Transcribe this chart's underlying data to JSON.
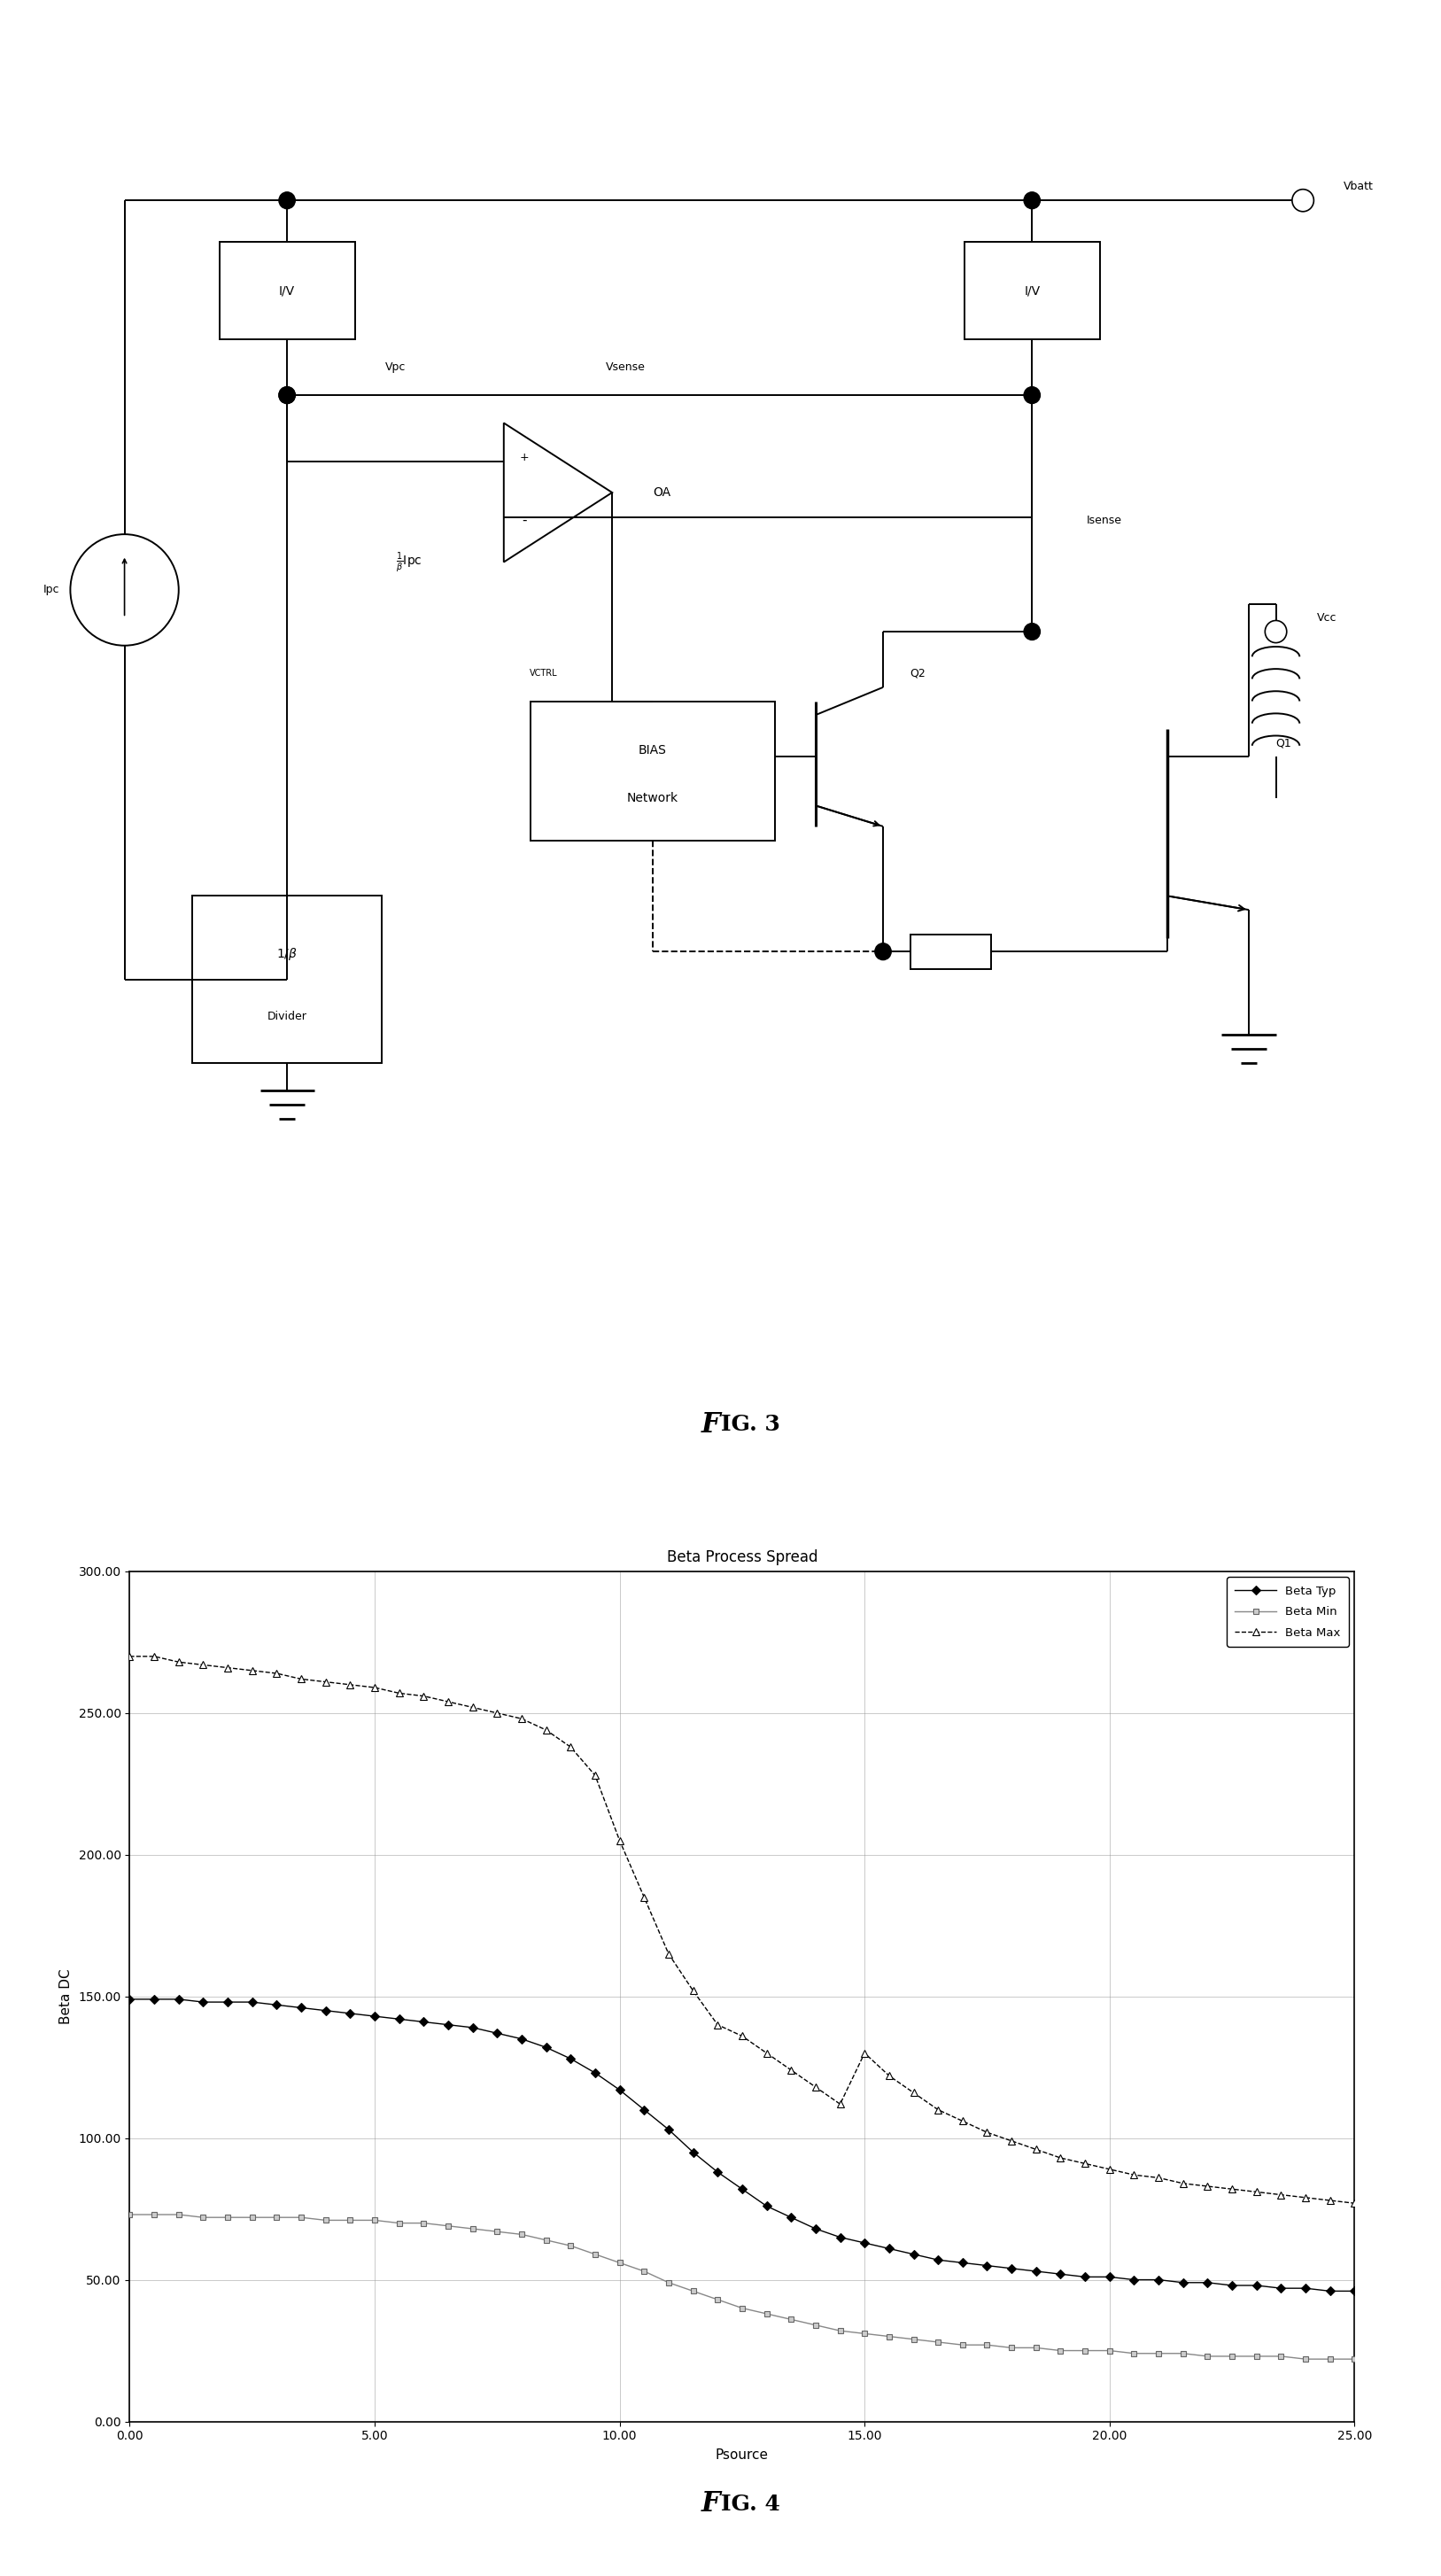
{
  "graph_title": "Beta Process Spread",
  "xlabel": "Psource",
  "ylabel": "Beta DC",
  "xlim": [
    0.0,
    25.0
  ],
  "ylim": [
    0.0,
    300.0
  ],
  "xticks": [
    0.0,
    5.0,
    10.0,
    15.0,
    20.0,
    25.0
  ],
  "yticks": [
    0.0,
    50.0,
    100.0,
    150.0,
    200.0,
    250.0,
    300.0
  ],
  "xtick_labels": [
    "0.00",
    "5.00",
    "10.00",
    "15.00",
    "20.00",
    "25.00"
  ],
  "ytick_labels": [
    "0.00",
    "50.00",
    "100.00",
    "150.00",
    "200.00",
    "250.00",
    "300.00"
  ],
  "beta_typ_x": [
    0,
    0.5,
    1,
    1.5,
    2,
    2.5,
    3,
    3.5,
    4,
    4.5,
    5,
    5.5,
    6,
    6.5,
    7,
    7.5,
    8,
    8.5,
    9,
    9.5,
    10,
    10.5,
    11,
    11.5,
    12,
    12.5,
    13,
    13.5,
    14,
    14.5,
    15,
    15.5,
    16,
    16.5,
    17,
    17.5,
    18,
    18.5,
    19,
    19.5,
    20,
    20.5,
    21,
    21.5,
    22,
    22.5,
    23,
    23.5,
    24,
    24.5,
    25
  ],
  "beta_typ_y": [
    149,
    149,
    149,
    148,
    148,
    148,
    147,
    146,
    145,
    144,
    143,
    142,
    141,
    140,
    139,
    137,
    135,
    132,
    128,
    123,
    117,
    110,
    103,
    95,
    88,
    82,
    76,
    72,
    68,
    65,
    63,
    61,
    59,
    57,
    56,
    55,
    54,
    53,
    52,
    51,
    51,
    50,
    50,
    49,
    49,
    48,
    48,
    47,
    47,
    46,
    46
  ],
  "beta_min_x": [
    0,
    0.5,
    1,
    1.5,
    2,
    2.5,
    3,
    3.5,
    4,
    4.5,
    5,
    5.5,
    6,
    6.5,
    7,
    7.5,
    8,
    8.5,
    9,
    9.5,
    10,
    10.5,
    11,
    11.5,
    12,
    12.5,
    13,
    13.5,
    14,
    14.5,
    15,
    15.5,
    16,
    16.5,
    17,
    17.5,
    18,
    18.5,
    19,
    19.5,
    20,
    20.5,
    21,
    21.5,
    22,
    22.5,
    23,
    23.5,
    24,
    24.5,
    25
  ],
  "beta_min_y": [
    73,
    73,
    73,
    72,
    72,
    72,
    72,
    72,
    71,
    71,
    71,
    70,
    70,
    69,
    68,
    67,
    66,
    64,
    62,
    59,
    56,
    53,
    49,
    46,
    43,
    40,
    38,
    36,
    34,
    32,
    31,
    30,
    29,
    28,
    27,
    27,
    26,
    26,
    25,
    25,
    25,
    24,
    24,
    24,
    23,
    23,
    23,
    23,
    22,
    22,
    22
  ],
  "beta_max_x": [
    0,
    0.5,
    1,
    1.5,
    2,
    2.5,
    3,
    3.5,
    4,
    4.5,
    5,
    5.5,
    6,
    6.5,
    7,
    7.5,
    8,
    8.5,
    9,
    9.5,
    10,
    10.5,
    11,
    11.5,
    12,
    12.5,
    13,
    13.5,
    14,
    14.5,
    15,
    15.5,
    16,
    16.5,
    17,
    17.5,
    18,
    18.5,
    19,
    19.5,
    20,
    20.5,
    21,
    21.5,
    22,
    22.5,
    23,
    23.5,
    24,
    24.5,
    25
  ],
  "beta_max_y": [
    270,
    270,
    268,
    267,
    266,
    265,
    264,
    262,
    261,
    260,
    259,
    257,
    256,
    254,
    252,
    250,
    248,
    244,
    238,
    228,
    205,
    185,
    165,
    152,
    140,
    136,
    130,
    124,
    118,
    112,
    130,
    122,
    116,
    110,
    106,
    102,
    99,
    96,
    93,
    91,
    89,
    87,
    86,
    84,
    83,
    82,
    81,
    80,
    79,
    78,
    77
  ],
  "background_color": "#ffffff",
  "plot_bg_color": "#ffffff",
  "grid_color": "#999999"
}
